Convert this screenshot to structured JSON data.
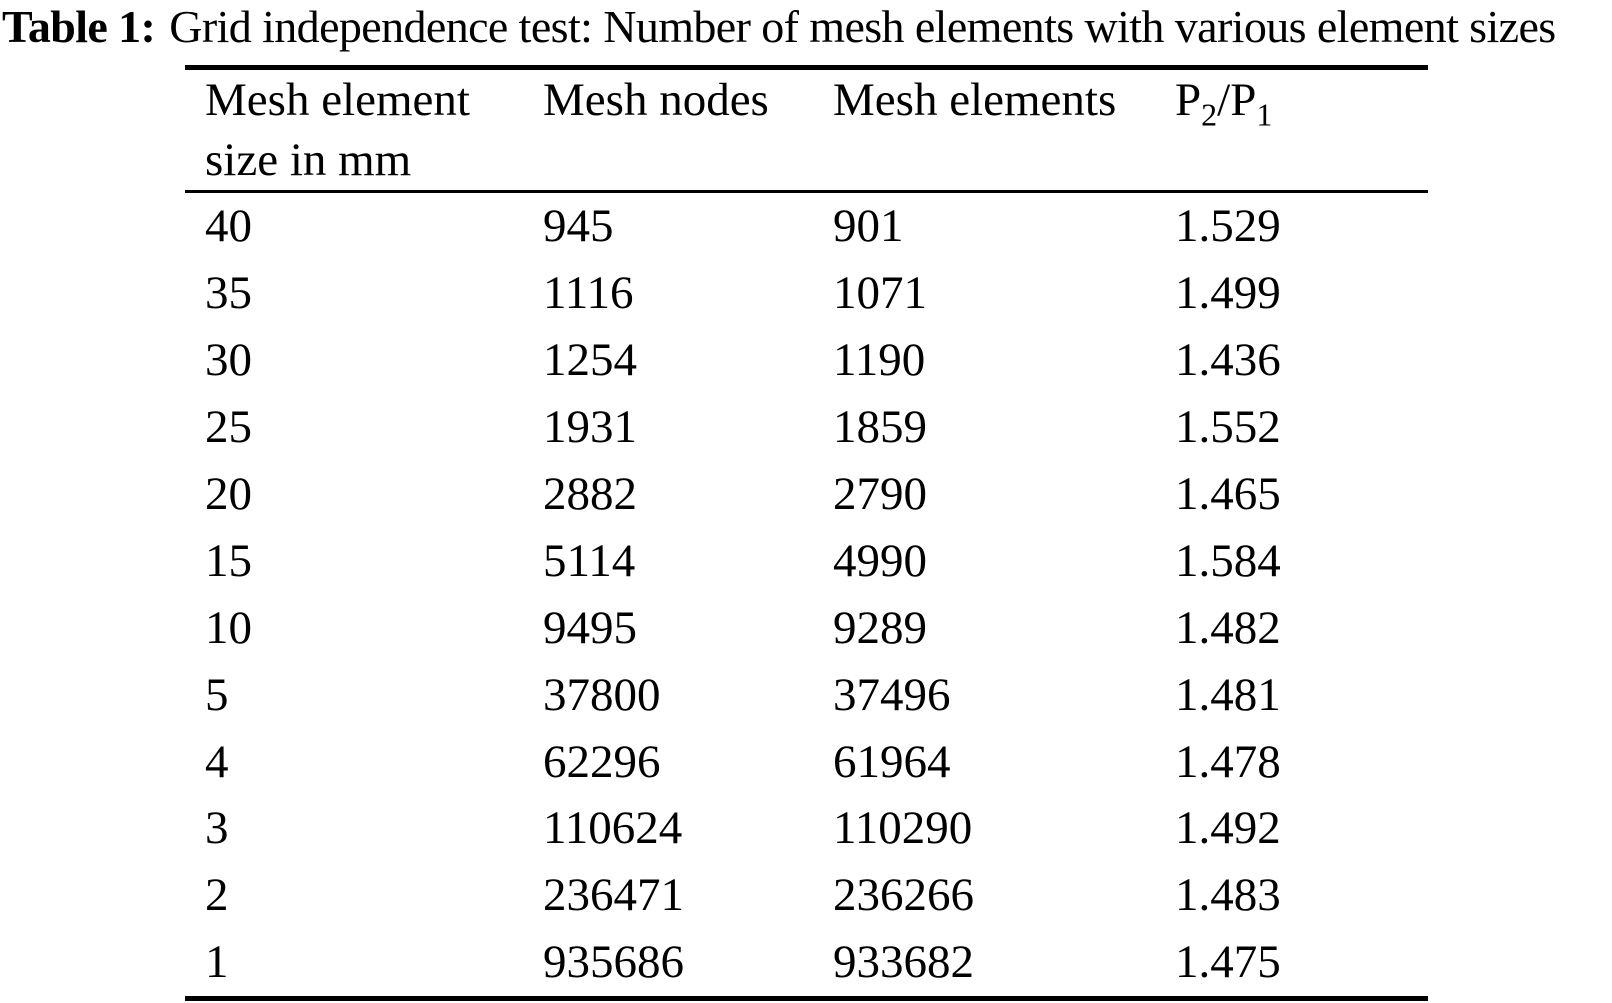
{
  "caption": {
    "label": "Table 1:",
    "text": "Grid independence test: Number of mesh elements with various element sizes"
  },
  "table": {
    "headers": {
      "col1_line1": "Mesh element",
      "col1_line2": "size in mm",
      "col2": "Mesh nodes",
      "col3": "Mesh elements",
      "col4": {
        "base1": "P",
        "sub1": "2",
        "divider": "/",
        "base2": "P",
        "sub2": "1"
      }
    },
    "rows": [
      [
        "40",
        "945",
        "901",
        "1.529"
      ],
      [
        "35",
        "1116",
        "1071",
        "1.499"
      ],
      [
        "30",
        "1254",
        "1190",
        "1.436"
      ],
      [
        "25",
        "1931",
        "1859",
        "1.552"
      ],
      [
        "20",
        "2882",
        "2790",
        "1.465"
      ],
      [
        "15",
        "5114",
        "4990",
        "1.584"
      ],
      [
        "10",
        "9495",
        "9289",
        "1.482"
      ],
      [
        "5",
        "37800",
        "37496",
        "1.481"
      ],
      [
        "4",
        "62296",
        "61964",
        "1.478"
      ],
      [
        "3",
        "110624",
        "110290",
        "1.492"
      ],
      [
        "2",
        "236471",
        "236266",
        "1.483"
      ],
      [
        "1",
        "935686",
        "933682",
        "1.475"
      ]
    ]
  },
  "colors": {
    "text": "#000000",
    "background": "#ffffff",
    "rule": "#000000"
  },
  "chart_data": {
    "type": "table",
    "title": "Table 1: Grid independence test: Number of mesh elements with various element sizes",
    "columns": [
      "Mesh element size in mm",
      "Mesh nodes",
      "Mesh elements",
      "P2/P1"
    ],
    "rows": [
      [
        40,
        945,
        901,
        1.529
      ],
      [
        35,
        1116,
        1071,
        1.499
      ],
      [
        30,
        1254,
        1190,
        1.436
      ],
      [
        25,
        1931,
        1859,
        1.552
      ],
      [
        20,
        2882,
        2790,
        1.465
      ],
      [
        15,
        5114,
        4990,
        1.584
      ],
      [
        10,
        9495,
        9289,
        1.482
      ],
      [
        5,
        37800,
        37496,
        1.481
      ],
      [
        4,
        62296,
        61964,
        1.478
      ],
      [
        3,
        110624,
        110290,
        1.492
      ],
      [
        2,
        236471,
        236266,
        1.483
      ],
      [
        1,
        935686,
        933682,
        1.475
      ]
    ]
  }
}
